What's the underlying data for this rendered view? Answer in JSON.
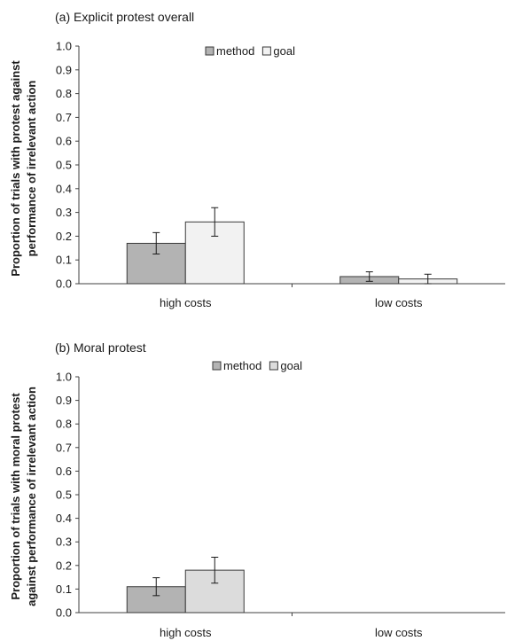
{
  "chart_data": [
    {
      "type": "bar",
      "title": "(a)  Explicit protest overall",
      "ylabel_lines": [
        "Proportion of trials with protest against",
        "performance of irrelevant action"
      ],
      "xlabel": "",
      "categories": [
        "high costs",
        "low costs"
      ],
      "series": [
        {
          "name": "method",
          "color": "#b3b3b3",
          "values": [
            0.17,
            0.03
          ],
          "errors": [
            0.045,
            0.02
          ]
        },
        {
          "name": "goal",
          "color": "#f2f2f2",
          "values": [
            0.26,
            0.02
          ],
          "errors": [
            0.06,
            0.02
          ]
        }
      ],
      "ylim": [
        0,
        1.0
      ],
      "yticks": [
        "0.0",
        "0.1",
        "0.2",
        "0.3",
        "0.4",
        "0.5",
        "0.6",
        "0.7",
        "0.8",
        "0.9",
        "1.0"
      ],
      "legend": "top-center",
      "grid": false
    },
    {
      "type": "bar",
      "title": "(b)  Moral protest",
      "ylabel_lines": [
        "Proportion of trials with moral protest",
        "against performance of irrelevant  action"
      ],
      "xlabel": "",
      "categories": [
        "high costs",
        "low costs"
      ],
      "series": [
        {
          "name": "method",
          "color": "#b3b3b3",
          "values": [
            0.11,
            0.0
          ],
          "errors": [
            0.038,
            0
          ]
        },
        {
          "name": "goal",
          "color": "#dcdcdc",
          "values": [
            0.18,
            0.0
          ],
          "errors": [
            0.055,
            0
          ]
        }
      ],
      "ylim": [
        0,
        1.0
      ],
      "yticks": [
        "0.0",
        "0.1",
        "0.2",
        "0.3",
        "0.4",
        "0.5",
        "0.6",
        "0.7",
        "0.8",
        "0.9",
        "1.0"
      ],
      "legend": "top-center",
      "grid": false
    }
  ]
}
